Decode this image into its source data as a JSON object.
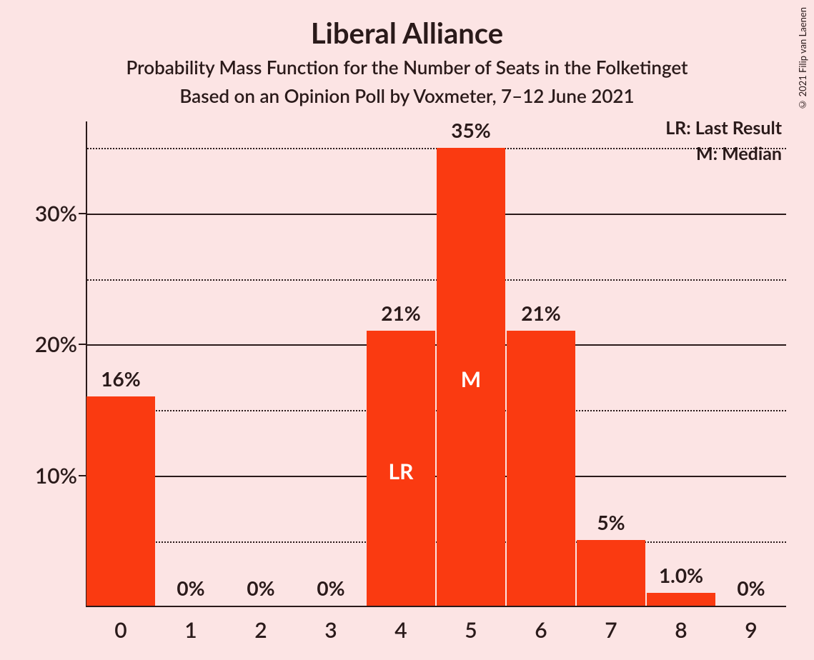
{
  "title": "Liberal Alliance",
  "subtitle1": "Probability Mass Function for the Number of Seats in the Folketinget",
  "subtitle2": "Based on an Opinion Poll by Voxmeter, 7–12 June 2021",
  "copyright": "© 2021 Filip van Laenen",
  "legend": {
    "lr": "LR: Last Result",
    "m": "M: Median"
  },
  "chart": {
    "type": "bar",
    "background_color": "#fce4e4",
    "bar_color": "#fa3a11",
    "text_color": "#2a1a1a",
    "inner_label_color": "#ffffff",
    "y_axis": {
      "min": 0,
      "max": 37,
      "major_ticks": [
        10,
        20,
        30
      ],
      "major_labels": [
        "10%",
        "20%",
        "30%"
      ],
      "minor_ticks": [
        5,
        15,
        25,
        35
      ]
    },
    "x_axis": {
      "categories": [
        "0",
        "1",
        "2",
        "3",
        "4",
        "5",
        "6",
        "7",
        "8",
        "9"
      ]
    },
    "bars": [
      {
        "x": "0",
        "value": 16,
        "label": "16%"
      },
      {
        "x": "1",
        "value": 0,
        "label": "0%"
      },
      {
        "x": "2",
        "value": 0,
        "label": "0%"
      },
      {
        "x": "3",
        "value": 0,
        "label": "0%"
      },
      {
        "x": "4",
        "value": 21,
        "label": "21%",
        "inner_label": "LR",
        "inner_label_y": 10.5
      },
      {
        "x": "5",
        "value": 35,
        "label": "35%",
        "inner_label": "M",
        "inner_label_y": 17.5
      },
      {
        "x": "6",
        "value": 21,
        "label": "21%"
      },
      {
        "x": "7",
        "value": 5,
        "label": "5%"
      },
      {
        "x": "8",
        "value": 1,
        "label": "1.0%"
      },
      {
        "x": "9",
        "value": 0,
        "label": "0%"
      }
    ],
    "bar_width_ratio": 0.97,
    "title_fontsize": 40,
    "subtitle_fontsize": 26,
    "axis_label_fontsize": 30,
    "value_label_fontsize": 28
  }
}
